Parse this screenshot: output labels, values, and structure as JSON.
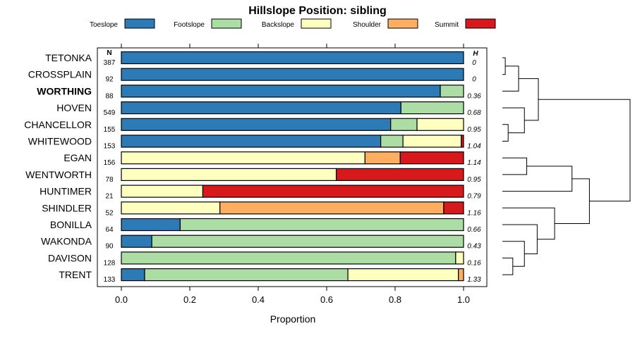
{
  "chart_data": {
    "type": "bar",
    "orientation": "horizontal",
    "stacked": true,
    "title": "Hillslope Position: sibling",
    "xlabel": "Proportion",
    "ylabel": "",
    "xlim": [
      0,
      1
    ],
    "xticks": [
      "0.0",
      "0.2",
      "0.4",
      "0.6",
      "0.8",
      "1.0"
    ],
    "n_header": "N",
    "h_header": "H",
    "legend": {
      "position": "top",
      "entries": [
        {
          "name": "Toeslope",
          "color": "#2c7bb6"
        },
        {
          "name": "Footslope",
          "color": "#abdda4"
        },
        {
          "name": "Backslope",
          "color": "#ffffbf"
        },
        {
          "name": "Shoulder",
          "color": "#fdae61"
        },
        {
          "name": "Summit",
          "color": "#d7191c"
        }
      ]
    },
    "rows": [
      {
        "name": "TETONKA",
        "bold": false,
        "n": "387",
        "h": "0",
        "values": [
          1.0,
          0,
          0,
          0,
          0
        ]
      },
      {
        "name": "CROSSPLAIN",
        "bold": false,
        "n": "92",
        "h": "0",
        "values": [
          1.0,
          0,
          0,
          0,
          0
        ]
      },
      {
        "name": "WORTHING",
        "bold": true,
        "n": "88",
        "h": "0.36",
        "values": [
          0.932,
          0.068,
          0,
          0,
          0
        ]
      },
      {
        "name": "HOVEN",
        "bold": false,
        "n": "549",
        "h": "0.68",
        "values": [
          0.817,
          0.183,
          0,
          0,
          0
        ]
      },
      {
        "name": "CHANCELLOR",
        "bold": false,
        "n": "155",
        "h": "0.95",
        "values": [
          0.787,
          0.077,
          0.136,
          0,
          0
        ]
      },
      {
        "name": "WHITEWOOD",
        "bold": false,
        "n": "153",
        "h": "1.04",
        "values": [
          0.758,
          0.065,
          0.17,
          0,
          0.007
        ]
      },
      {
        "name": "EGAN",
        "bold": false,
        "n": "156",
        "h": "1.14",
        "values": [
          0,
          0,
          0.712,
          0.103,
          0.185
        ]
      },
      {
        "name": "WENTWORTH",
        "bold": false,
        "n": "78",
        "h": "0.95",
        "values": [
          0,
          0,
          0.628,
          0,
          0.372
        ]
      },
      {
        "name": "HUNTIMER",
        "bold": false,
        "n": "21",
        "h": "0.79",
        "values": [
          0,
          0,
          0.238,
          0,
          0.762
        ]
      },
      {
        "name": "SHINDLER",
        "bold": false,
        "n": "52",
        "h": "1.16",
        "values": [
          0,
          0,
          0.288,
          0.654,
          0.058
        ]
      },
      {
        "name": "BONILLA",
        "bold": false,
        "n": "64",
        "h": "0.66",
        "values": [
          0.172,
          0.828,
          0,
          0,
          0
        ]
      },
      {
        "name": "WAKONDA",
        "bold": false,
        "n": "90",
        "h": "0.43",
        "values": [
          0.089,
          0.911,
          0,
          0,
          0
        ]
      },
      {
        "name": "DAVISON",
        "bold": false,
        "n": "128",
        "h": "0.16",
        "values": [
          0,
          0.977,
          0.023,
          0,
          0
        ]
      },
      {
        "name": "TRENT",
        "bold": false,
        "n": "133",
        "h": "1.33",
        "values": [
          0.068,
          0.594,
          0.323,
          0.015,
          0
        ]
      }
    ],
    "dendrogram": {
      "order": [
        "TETONKA",
        "CROSSPLAIN",
        "WORTHING",
        "HOVEN",
        "CHANCELLOR",
        "WHITEWOOD",
        "EGAN",
        "WENTWORTH",
        "HUNTIMER",
        "SHINDLER",
        "BONILLA",
        "WAKONDA",
        "DAVISON",
        "TRENT"
      ],
      "merges": [
        {
          "left": "TETONKA",
          "right": "CROSSPLAIN",
          "height": 0.05
        },
        {
          "left": "m0",
          "right": "WORTHING",
          "height": 0.28
        },
        {
          "left": "CHANCELLOR",
          "right": "WHITEWOOD",
          "height": 0.1
        },
        {
          "left": "HOVEN",
          "right": "m2",
          "height": 0.38
        },
        {
          "left": "m1",
          "right": "m3",
          "height": 0.62
        },
        {
          "left": "EGAN",
          "right": "WENTWORTH",
          "height": 0.42
        },
        {
          "left": "m5",
          "right": "HUNTIMER",
          "height": 1.2
        },
        {
          "left": "DAVISON",
          "right": "TRENT",
          "height": 0.18
        },
        {
          "left": "WAKONDA",
          "right": "m7",
          "height": 0.38
        },
        {
          "left": "BONILLA",
          "right": "m8",
          "height": 0.6
        },
        {
          "left": "m9",
          "right": "SHINDLER",
          "height": 0.9
        },
        {
          "left": "m6",
          "right": "m10",
          "height": 1.5
        },
        {
          "left": "m4",
          "right": "m11",
          "height": 2.2
        }
      ]
    }
  }
}
